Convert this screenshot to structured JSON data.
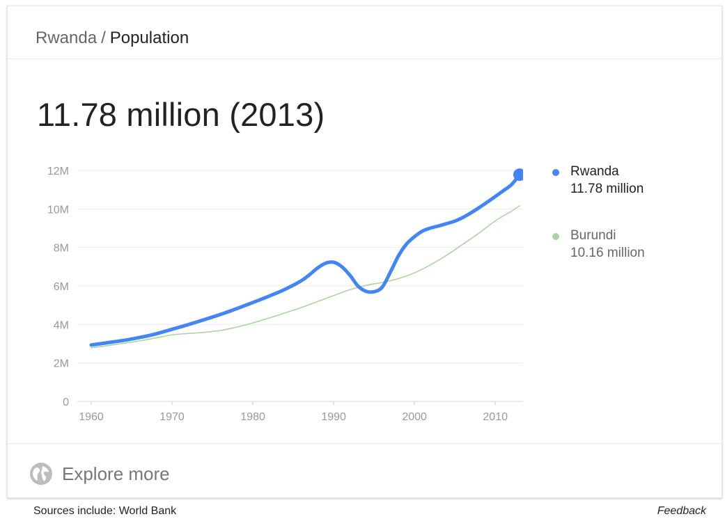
{
  "header": {
    "breadcrumb_country": "Rwanda",
    "breadcrumb_separator": "/",
    "breadcrumb_topic": "Population"
  },
  "headline": "11.78 million (2013)",
  "explore": {
    "label": "Explore more",
    "icon": "globe-icon"
  },
  "footer": {
    "source": "Sources include: World Bank",
    "feedback": "Feedback"
  },
  "colors": {
    "primary_series": "#4285f4",
    "secondary_series": "#a8d5a2",
    "gridline": "#ebebeb",
    "tick_label": "#999999"
  },
  "legend": [
    {
      "name": "Rwanda",
      "value": "11.78 million",
      "color": "#4285f4"
    },
    {
      "name": "Burundi",
      "value": "10.16 million",
      "color": "#a8d5a2"
    }
  ],
  "chart_data": {
    "type": "line",
    "title": "",
    "xlabel": "",
    "ylabel": "",
    "xlim": [
      1960,
      2013
    ],
    "ylim": [
      0,
      12000000
    ],
    "x_ticks": [
      1960,
      1970,
      1980,
      1990,
      2000,
      2010
    ],
    "y_ticks": [
      0,
      2000000,
      4000000,
      6000000,
      8000000,
      10000000,
      12000000
    ],
    "y_tick_labels": [
      "0",
      "2M",
      "4M",
      "6M",
      "8M",
      "10M",
      "12M"
    ],
    "grid": "horizontal",
    "legend_position": "right",
    "series": [
      {
        "name": "Rwanda",
        "color": "#4285f4",
        "end_marker": true,
        "x": [
          1960,
          1962,
          1964,
          1966,
          1968,
          1970,
          1972,
          1974,
          1976,
          1978,
          1980,
          1982,
          1984,
          1986,
          1987,
          1988,
          1989,
          1990,
          1991,
          1992,
          1993,
          1994,
          1995,
          1996,
          1997,
          1998,
          1999,
          2000,
          2001,
          2002,
          2003,
          2004,
          2005,
          2006,
          2007,
          2008,
          2009,
          2010,
          2011,
          2012,
          2013
        ],
        "y": [
          2930000,
          3050000,
          3170000,
          3320000,
          3510000,
          3750000,
          3990000,
          4250000,
          4520000,
          4820000,
          5140000,
          5470000,
          5830000,
          6270000,
          6580000,
          6930000,
          7180000,
          7230000,
          7000000,
          6560000,
          6000000,
          5720000,
          5700000,
          5930000,
          6700000,
          7550000,
          8170000,
          8560000,
          8850000,
          9010000,
          9120000,
          9240000,
          9370000,
          9560000,
          9800000,
          10070000,
          10350000,
          10650000,
          10950000,
          11260000,
          11780000
        ]
      },
      {
        "name": "Burundi",
        "color": "#a8d5a2",
        "end_marker": false,
        "x": [
          1960,
          1962,
          1964,
          1966,
          1968,
          1970,
          1972,
          1974,
          1976,
          1978,
          1980,
          1982,
          1984,
          1986,
          1988,
          1990,
          1992,
          1994,
          1996,
          1998,
          2000,
          2002,
          2004,
          2006,
          2008,
          2010,
          2012,
          2013
        ],
        "y": [
          2790000,
          2900000,
          3020000,
          3150000,
          3300000,
          3460000,
          3530000,
          3590000,
          3690000,
          3860000,
          4080000,
          4330000,
          4600000,
          4880000,
          5190000,
          5500000,
          5800000,
          6030000,
          6180000,
          6380000,
          6680000,
          7100000,
          7600000,
          8170000,
          8750000,
          9380000,
          9890000,
          10160000
        ]
      }
    ]
  }
}
